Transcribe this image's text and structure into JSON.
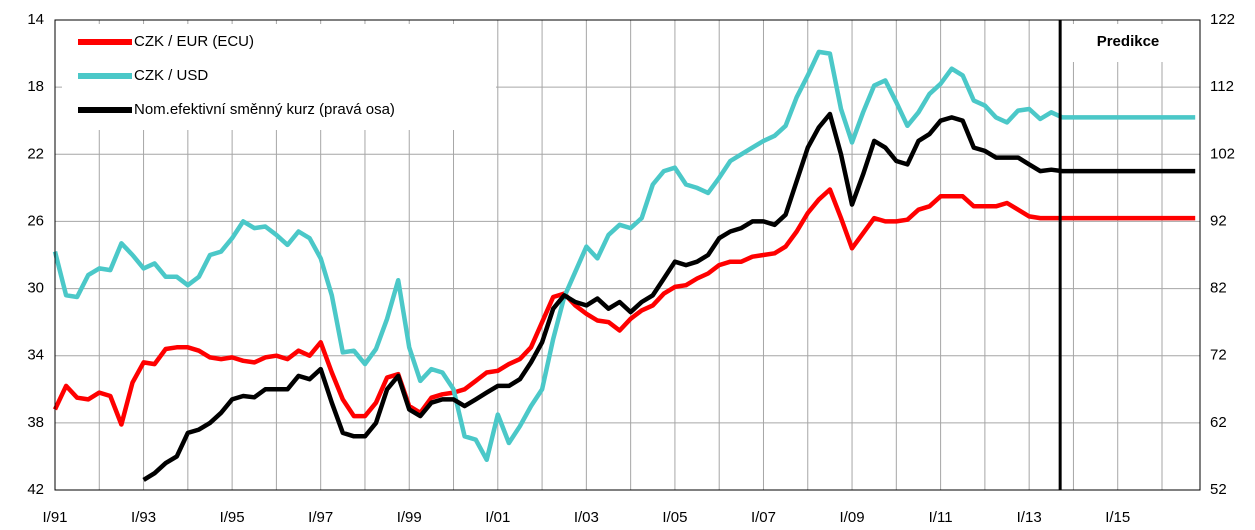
{
  "chart_data": {
    "type": "line",
    "categories": [
      "I/91",
      null,
      null,
      null,
      null,
      null,
      null,
      null,
      "I/93",
      null,
      null,
      null,
      null,
      null,
      null,
      null,
      "I/95",
      null,
      null,
      null,
      null,
      null,
      null,
      null,
      "I/97",
      null,
      null,
      null,
      null,
      null,
      null,
      null,
      "I/99",
      null,
      null,
      null,
      null,
      null,
      null,
      null,
      "I/01",
      null,
      null,
      null,
      null,
      null,
      null,
      null,
      "I/03",
      null,
      null,
      null,
      null,
      null,
      null,
      null,
      "I/05",
      null,
      null,
      null,
      null,
      null,
      null,
      null,
      "I/07",
      null,
      null,
      null,
      null,
      null,
      null,
      null,
      "I/09",
      null,
      null,
      null,
      null,
      null,
      null,
      null,
      "I/11",
      null,
      null,
      null,
      null,
      null,
      null,
      null,
      "I/13",
      null,
      null,
      null,
      null,
      null,
      null,
      null,
      "I/15",
      null,
      null,
      null,
      null,
      null,
      null,
      null
    ],
    "series": [
      {
        "name": "CZK / EUR (ECU)",
        "color": "#ff0000",
        "axis": "y",
        "values": [
          37.2,
          35.8,
          36.5,
          36.6,
          36.2,
          36.4,
          38.1,
          35.6,
          34.4,
          34.5,
          33.6,
          33.5,
          33.5,
          33.7,
          34.1,
          34.2,
          34.1,
          34.3,
          34.4,
          34.1,
          34.0,
          34.2,
          33.7,
          34.0,
          33.2,
          35.0,
          36.6,
          37.6,
          37.6,
          36.8,
          35.3,
          35.1,
          37.0,
          37.4,
          36.5,
          36.3,
          36.2,
          36.0,
          35.5,
          35.0,
          34.9,
          34.5,
          34.2,
          33.5,
          32.0,
          30.5,
          30.3,
          31.0,
          31.5,
          31.9,
          32.0,
          32.5,
          31.8,
          31.3,
          31.0,
          30.3,
          29.9,
          29.8,
          29.4,
          29.1,
          28.6,
          28.4,
          28.4,
          28.1,
          28.0,
          27.9,
          27.5,
          26.6,
          25.5,
          24.7,
          24.1,
          25.8,
          27.6,
          26.7,
          25.8,
          26.0,
          26.0,
          25.9,
          25.3,
          25.1,
          24.5,
          24.5,
          24.5,
          25.1,
          25.1,
          25.1,
          24.9,
          25.3,
          25.7,
          25.8,
          25.8,
          25.8,
          25.8,
          25.8,
          25.8,
          25.8,
          25.8,
          25.8,
          25.8,
          25.8,
          25.8,
          25.8,
          25.8,
          25.8
        ]
      },
      {
        "name": "CZK / USD",
        "color": "#4bc8c8",
        "axis": "y",
        "values": [
          27.8,
          30.4,
          30.5,
          29.2,
          28.8,
          28.9,
          27.3,
          28.0,
          28.8,
          28.5,
          29.3,
          29.3,
          29.8,
          29.3,
          28.0,
          27.8,
          27.0,
          26.0,
          26.4,
          26.3,
          26.8,
          27.4,
          26.6,
          27.0,
          28.2,
          30.4,
          33.8,
          33.7,
          34.5,
          33.6,
          31.8,
          29.5,
          33.5,
          35.5,
          34.8,
          35.0,
          36.0,
          38.8,
          39.0,
          40.2,
          37.5,
          39.2,
          38.2,
          37.0,
          36.0,
          33.0,
          30.5,
          29.0,
          27.5,
          28.2,
          26.8,
          26.2,
          26.4,
          25.8,
          23.8,
          23.0,
          22.8,
          23.8,
          24.0,
          24.3,
          23.4,
          22.4,
          22.0,
          21.6,
          21.2,
          20.9,
          20.3,
          18.6,
          17.3,
          15.9,
          16.0,
          19.3,
          21.3,
          19.5,
          17.9,
          17.6,
          18.9,
          20.3,
          19.5,
          18.4,
          17.8,
          16.9,
          17.3,
          18.8,
          19.1,
          19.8,
          20.1,
          19.4,
          19.3,
          19.9,
          19.5,
          19.8,
          19.8,
          19.8,
          19.8,
          19.8,
          19.8,
          19.8,
          19.8,
          19.8,
          19.8,
          19.8,
          19.8,
          19.8
        ]
      },
      {
        "name": "Nom.efektivní směnný kurz (pravá osa)",
        "color": "#000000",
        "axis": "y2",
        "values": [
          null,
          null,
          null,
          null,
          null,
          null,
          null,
          null,
          53.5,
          54.5,
          56,
          57,
          60.5,
          61,
          62,
          63.5,
          65.5,
          66,
          65.8,
          67,
          67,
          67,
          69,
          68.5,
          70,
          65,
          60.5,
          60,
          60,
          62,
          67,
          69,
          64,
          63,
          65,
          65.5,
          65.5,
          64.5,
          65.5,
          66.5,
          67.5,
          67.5,
          68.5,
          71,
          74,
          79,
          81,
          80,
          79.5,
          80.5,
          79,
          80,
          78.5,
          80,
          81,
          83.5,
          86,
          85.5,
          86,
          87,
          89.5,
          90.5,
          91,
          92,
          92,
          91.5,
          93,
          98,
          103,
          106,
          108,
          102,
          94.5,
          99,
          104,
          103,
          101,
          100.5,
          104,
          105,
          107,
          107.5,
          107,
          103,
          102.5,
          101.5,
          101.5,
          101.5,
          100.5,
          99.5,
          99.7,
          99.5,
          99.5,
          99.5,
          99.5,
          99.5,
          99.5,
          99.5,
          99.5,
          99.5,
          99.5,
          99.5,
          99.5,
          99.5
        ]
      }
    ],
    "ylim": [
      42,
      14
    ],
    "yticks": [
      14,
      18,
      22,
      26,
      30,
      34,
      38,
      42
    ],
    "y2lim": [
      52,
      122
    ],
    "y2ticks": [
      52,
      62,
      72,
      82,
      92,
      102,
      112,
      122
    ],
    "grid": true,
    "annotation": "Predikce"
  }
}
